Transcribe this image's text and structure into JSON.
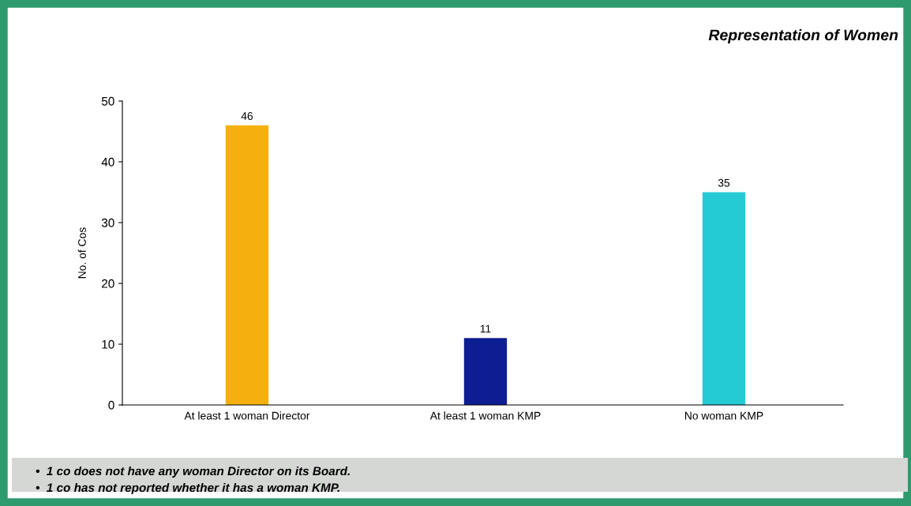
{
  "chart_data": {
    "type": "bar",
    "title": "Representation of Women",
    "ylabel": "No. of Cos",
    "categories": [
      "At least 1 woman Director",
      "At least 1 woman KMP",
      "No woman KMP"
    ],
    "values": [
      46,
      11,
      35
    ],
    "colors": [
      "#f5b00f",
      "#0c1e91",
      "#24cbd5"
    ],
    "ylim": [
      0,
      50
    ],
    "yticks": [
      0,
      10,
      20,
      30,
      40,
      50
    ],
    "grid": false,
    "data_labels": true,
    "annotations": [
      "•  1 co does not have any woman Director on its Board.",
      "•  1 co has not reported whether it has a woman KMP."
    ]
  }
}
